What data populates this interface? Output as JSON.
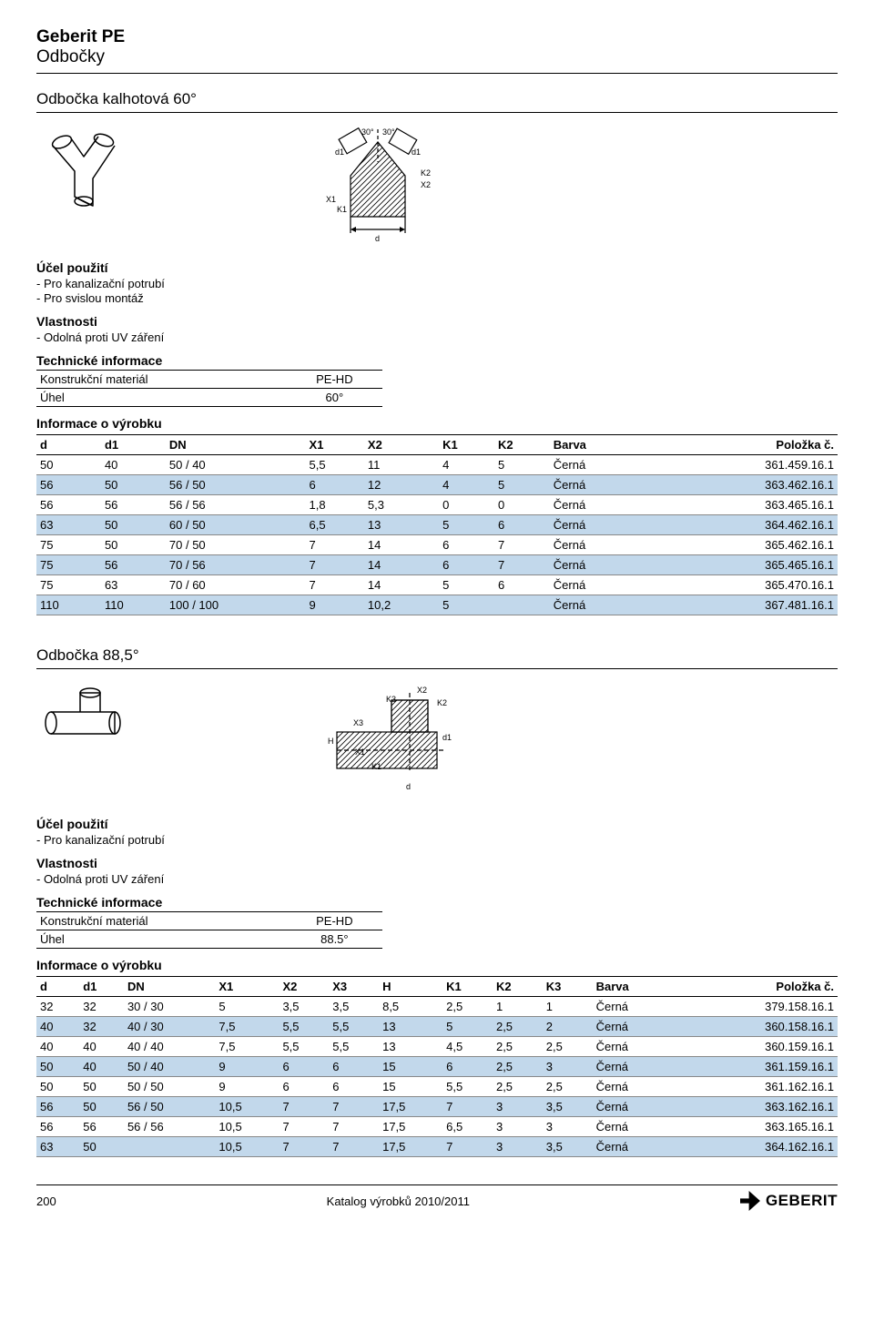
{
  "header": {
    "brand": "Geberit PE",
    "category": "Odbočky"
  },
  "section1": {
    "title": "Odbočka kalhotová 60°",
    "purpose_heading": "Účel použití",
    "purposes": [
      "- Pro kanalizační potrubí",
      "- Pro svislou montáž"
    ],
    "properties_heading": "Vlastnosti",
    "properties": [
      "- Odolná proti UV záření"
    ],
    "tech_heading": "Technické informace",
    "tech_rows": [
      {
        "label": "Konstrukční materiál",
        "value": "PE-HD"
      },
      {
        "label": "Úhel",
        "value": "60°"
      }
    ],
    "info_heading": "Informace o výrobku",
    "columns": [
      "d",
      "d1",
      "DN",
      "X1",
      "X2",
      "K1",
      "K2",
      "Barva",
      "Položka č."
    ],
    "rows": [
      [
        "50",
        "40",
        "50 / 40",
        "5,5",
        "11",
        "4",
        "5",
        "Černá",
        "361.459.16.1"
      ],
      [
        "56",
        "50",
        "56 / 50",
        "6",
        "12",
        "4",
        "5",
        "Černá",
        "363.462.16.1"
      ],
      [
        "56",
        "56",
        "56 / 56",
        "1,8",
        "5,3",
        "0",
        "0",
        "Černá",
        "363.465.16.1"
      ],
      [
        "63",
        "50",
        "60 / 50",
        "6,5",
        "13",
        "5",
        "6",
        "Černá",
        "364.462.16.1"
      ],
      [
        "75",
        "50",
        "70 / 50",
        "7",
        "14",
        "6",
        "7",
        "Černá",
        "365.462.16.1"
      ],
      [
        "75",
        "56",
        "70 / 56",
        "7",
        "14",
        "6",
        "7",
        "Černá",
        "365.465.16.1"
      ],
      [
        "75",
        "63",
        "70 / 60",
        "7",
        "14",
        "5",
        "6",
        "Černá",
        "365.470.16.1"
      ],
      [
        "110",
        "110",
        "100 / 100",
        "9",
        "10,2",
        "5",
        "",
        "Černá",
        "367.481.16.1"
      ]
    ],
    "diagram_labels": {
      "a30l": "30°",
      "a30r": "30°",
      "d1l": "d1",
      "d1r": "d1",
      "K2": "K2",
      "X2": "X2",
      "X1": "X1",
      "K1": "K1",
      "d": "d"
    }
  },
  "section2": {
    "title": "Odbočka 88,5°",
    "purpose_heading": "Účel použití",
    "purposes": [
      "- Pro kanalizační potrubí"
    ],
    "properties_heading": "Vlastnosti",
    "properties": [
      "- Odolná proti UV záření"
    ],
    "tech_heading": "Technické informace",
    "tech_rows": [
      {
        "label": "Konstrukční materiál",
        "value": "PE-HD"
      },
      {
        "label": "Úhel",
        "value": "88.5°"
      }
    ],
    "info_heading": "Informace o výrobku",
    "columns": [
      "d",
      "d1",
      "DN",
      "X1",
      "X2",
      "X3",
      "H",
      "K1",
      "K2",
      "K3",
      "Barva",
      "Položka č."
    ],
    "rows": [
      [
        "32",
        "32",
        "30 / 30",
        "5",
        "3,5",
        "3,5",
        "8,5",
        "2,5",
        "1",
        "1",
        "Černá",
        "379.158.16.1"
      ],
      [
        "40",
        "32",
        "40 / 30",
        "7,5",
        "5,5",
        "5,5",
        "13",
        "5",
        "2,5",
        "2",
        "Černá",
        "360.158.16.1"
      ],
      [
        "40",
        "40",
        "40 / 40",
        "7,5",
        "5,5",
        "5,5",
        "13",
        "4,5",
        "2,5",
        "2,5",
        "Černá",
        "360.159.16.1"
      ],
      [
        "50",
        "40",
        "50 / 40",
        "9",
        "6",
        "6",
        "15",
        "6",
        "2,5",
        "3",
        "Černá",
        "361.159.16.1"
      ],
      [
        "50",
        "50",
        "50 / 50",
        "9",
        "6",
        "6",
        "15",
        "5,5",
        "2,5",
        "2,5",
        "Černá",
        "361.162.16.1"
      ],
      [
        "56",
        "50",
        "56 / 50",
        "10,5",
        "7",
        "7",
        "17,5",
        "7",
        "3",
        "3,5",
        "Černá",
        "363.162.16.1"
      ],
      [
        "56",
        "56",
        "56 / 56",
        "10,5",
        "7",
        "7",
        "17,5",
        "6,5",
        "3",
        "3",
        "Černá",
        "363.165.16.1"
      ],
      [
        "63",
        "50",
        "",
        "10,5",
        "7",
        "7",
        "17,5",
        "7",
        "3",
        "3,5",
        "Černá",
        "364.162.16.1"
      ]
    ],
    "diagram_labels": {
      "X2": "X2",
      "K3": "K3",
      "K2": "K2",
      "X3": "X3",
      "H": "H",
      "X1": "X1",
      "d1": "d1",
      "K1": "K1",
      "d": "d"
    }
  },
  "footer": {
    "page": "200",
    "center": "Katalog výrobků 2010/2011",
    "brand": "GEBERIT"
  },
  "colors": {
    "alt_row": "#c2d8eb",
    "text": "#000000",
    "bg": "#ffffff"
  }
}
